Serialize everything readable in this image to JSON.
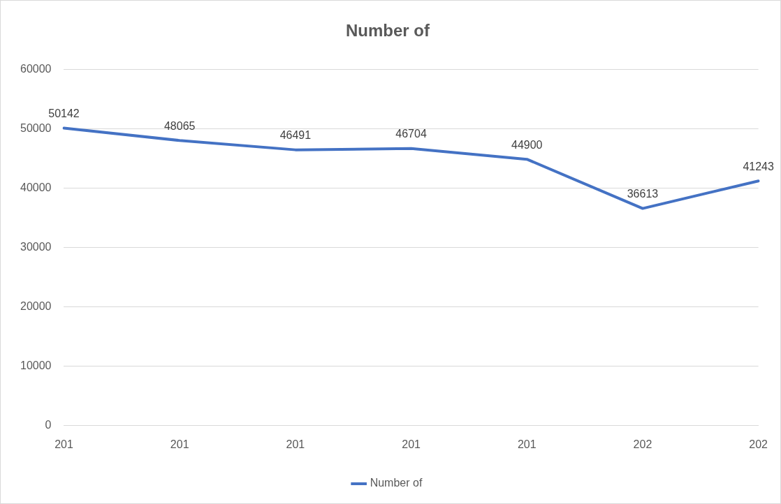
{
  "chart_data": {
    "type": "line",
    "title": "Number of",
    "categories": [
      "201",
      "201",
      "201",
      "201",
      "201",
      "202",
      "202"
    ],
    "series": [
      {
        "name": "Number of",
        "color": "#4472c4",
        "values": [
          50142,
          48065,
          46491,
          46704,
          44900,
          36613,
          41243
        ]
      }
    ],
    "ylim": [
      0,
      60000
    ],
    "yticks": [
      0,
      10000,
      20000,
      30000,
      40000,
      50000,
      60000
    ],
    "grid": "y",
    "legend": "bottom",
    "marker": "none",
    "line_style": "solid",
    "data_labels": true
  }
}
